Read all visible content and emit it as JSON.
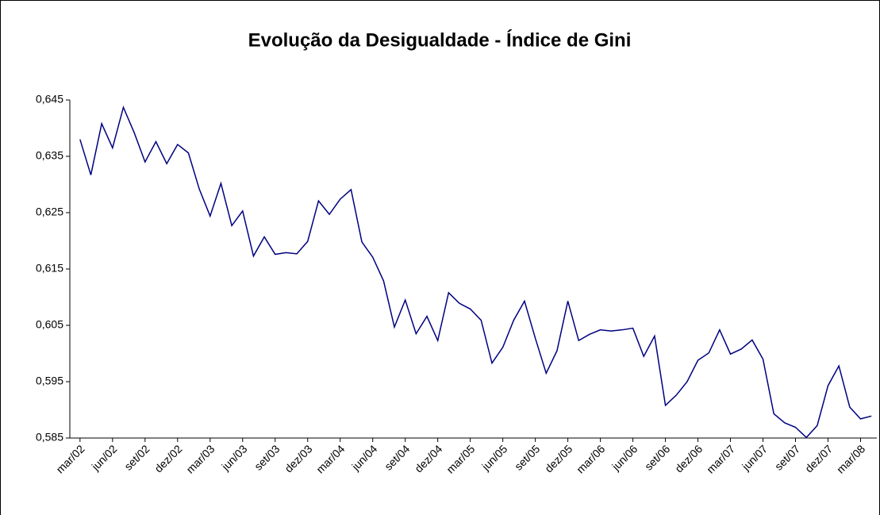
{
  "chart_data": {
    "type": "line",
    "title": "Evolução da Desigualdade - Índice de Gini",
    "categories": [
      "mar/02",
      null,
      null,
      "jun/02",
      null,
      null,
      "set/02",
      null,
      null,
      "dez/02",
      null,
      null,
      "mar/03",
      null,
      null,
      "jun/03",
      null,
      null,
      "set/03",
      null,
      null,
      "dez/03",
      null,
      null,
      "mar/04",
      null,
      null,
      "jun/04",
      null,
      null,
      "set/04",
      null,
      null,
      "dez/04",
      null,
      null,
      "mar/05",
      null,
      null,
      "jun/05",
      null,
      null,
      "set/05",
      null,
      null,
      "dez/05",
      null,
      null,
      "mar/06",
      null,
      null,
      "jun/06",
      null,
      null,
      "set/06",
      null,
      null,
      "dez/06",
      null,
      null,
      "mar/07",
      null,
      null,
      "jun/07",
      null,
      null,
      "set/07",
      null,
      null,
      "dez/07",
      null,
      null,
      "mar/08",
      null
    ],
    "values": [
      0.638,
      0.6317,
      0.6408,
      0.6365,
      0.6437,
      0.6392,
      0.634,
      0.6376,
      0.6337,
      0.6371,
      0.6356,
      0.6292,
      0.6244,
      0.6302,
      0.6227,
      0.6253,
      0.6173,
      0.6207,
      0.6176,
      0.6179,
      0.6177,
      0.6199,
      0.6271,
      0.6247,
      0.6274,
      0.6291,
      0.6198,
      0.6171,
      0.6129,
      0.6047,
      0.6095,
      0.6035,
      0.6066,
      0.6023,
      0.6108,
      0.6089,
      0.6079,
      0.6059,
      0.5983,
      0.6011,
      0.6059,
      0.6093,
      0.6027,
      0.5965,
      0.6005,
      0.6093,
      0.6023,
      0.6034,
      0.6042,
      0.604,
      0.6042,
      0.6045,
      0.5995,
      0.6031,
      0.5908,
      0.5926,
      0.595,
      0.5988,
      0.6001,
      0.6042,
      0.5999,
      0.6008,
      0.6024,
      0.599,
      0.5893,
      0.5877,
      0.5869,
      0.5851,
      0.5872,
      0.5943,
      0.5978,
      0.5905,
      0.5884,
      0.5889
    ],
    "color": "#000080",
    "ylim": [
      0.585,
      0.645
    ],
    "yticks": [
      {
        "value": 0.585,
        "label": "0,585"
      },
      {
        "value": 0.595,
        "label": "0,595"
      },
      {
        "value": 0.605,
        "label": "0,605"
      },
      {
        "value": 0.615,
        "label": "0,615"
      },
      {
        "value": 0.625,
        "label": "0,625"
      },
      {
        "value": 0.635,
        "label": "0,635"
      },
      {
        "value": 0.645,
        "label": "0,645"
      }
    ],
    "grid": false
  }
}
